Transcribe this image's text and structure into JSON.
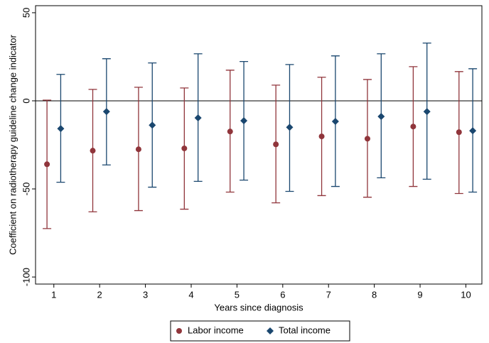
{
  "chart_data": {
    "type": "errorbar",
    "xlabel": "Years since diagnosis",
    "ylabel": "Coefficient on radiotherapy guideline change indicator",
    "x": [
      1,
      2,
      3,
      4,
      5,
      6,
      7,
      8,
      9,
      10
    ],
    "series": [
      {
        "name": "Labor income",
        "color": "#90353b",
        "marker": "circle",
        "values": [
          -36,
          -28.3,
          -27.5,
          -27,
          -17.4,
          -24.7,
          -20.2,
          -21.5,
          -14.6,
          -17.8
        ],
        "lower": [
          -72.5,
          -63,
          -62.3,
          -61.5,
          -51.8,
          -57.9,
          -53.8,
          -54.7,
          -48.6,
          -52.6
        ],
        "upper": [
          0.4,
          6.5,
          7.7,
          7.3,
          17.4,
          8.9,
          13.4,
          12.1,
          19.4,
          16.6
        ]
      },
      {
        "name": "Total income",
        "color": "#1a476f",
        "marker": "diamond",
        "values": [
          -15.8,
          -6.1,
          -13.8,
          -9.7,
          -11.3,
          -15,
          -11.7,
          -8.9,
          -6.1,
          -17
        ],
        "lower": [
          -46.2,
          -36.4,
          -49,
          -45.7,
          -45,
          -51.4,
          -48.6,
          -43.7,
          -44.5,
          -51.8
        ],
        "upper": [
          15,
          23.9,
          21.5,
          26.7,
          22.3,
          20.6,
          25.5,
          26.7,
          32.8,
          18.2
        ]
      }
    ],
    "xlim": [
      0.6,
      10.35
    ],
    "xticks": [
      1,
      2,
      3,
      4,
      5,
      6,
      7,
      8,
      9,
      10
    ],
    "ylim": [
      -104,
      54
    ],
    "yticks": [
      50,
      0,
      -50,
      -100
    ],
    "yline": 0,
    "legend": "bottom"
  }
}
